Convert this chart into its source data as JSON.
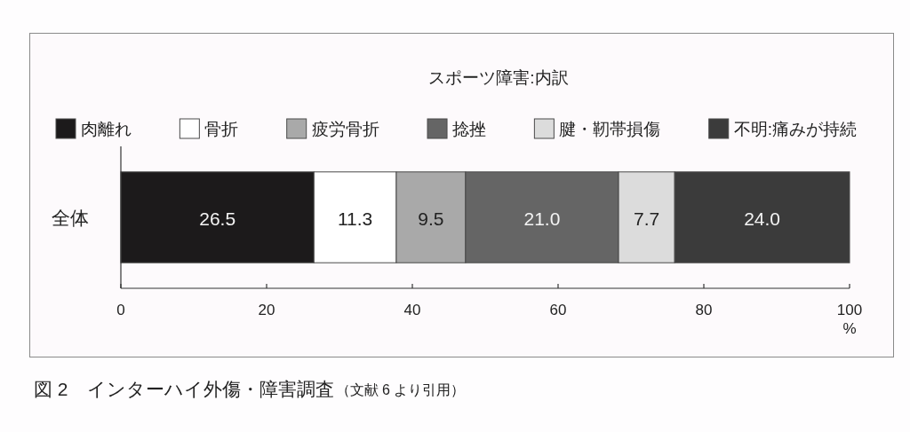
{
  "chart_data": {
    "type": "bar",
    "orientation": "horizontal",
    "stacked": true,
    "title": "スポーツ障害:内訳",
    "xlabel": "%",
    "categories": [
      "全体"
    ],
    "series": [
      {
        "name": "肉離れ",
        "color": "#1c1a1b",
        "values": [
          26.5
        ],
        "value_labels": [
          "26.5"
        ]
      },
      {
        "name": "骨折",
        "color": "#ffffff",
        "values": [
          11.3
        ],
        "value_labels": [
          "11.3"
        ]
      },
      {
        "name": "疲労骨折",
        "color": "#a9a9a9",
        "values": [
          9.5
        ],
        "value_labels": [
          "9.5"
        ]
      },
      {
        "name": "捻挫",
        "color": "#656565",
        "values": [
          21.0
        ],
        "value_labels": [
          "21.0"
        ]
      },
      {
        "name": "腱・靭帯損傷",
        "color": "#dcdcdc",
        "values": [
          7.7
        ],
        "value_labels": [
          "7.7"
        ]
      },
      {
        "name": "不明:痛みが持続",
        "color": "#3b3b3b",
        "values": [
          24.0
        ],
        "value_labels": [
          "24.0"
        ]
      }
    ],
    "xlim": [
      0,
      100
    ],
    "xticks": [
      0,
      20,
      40,
      60,
      80,
      100
    ],
    "legend": "top",
    "annotations": [
      "図 2　インターハイ外傷・障害調査",
      "（文献 6 より引用）"
    ]
  }
}
